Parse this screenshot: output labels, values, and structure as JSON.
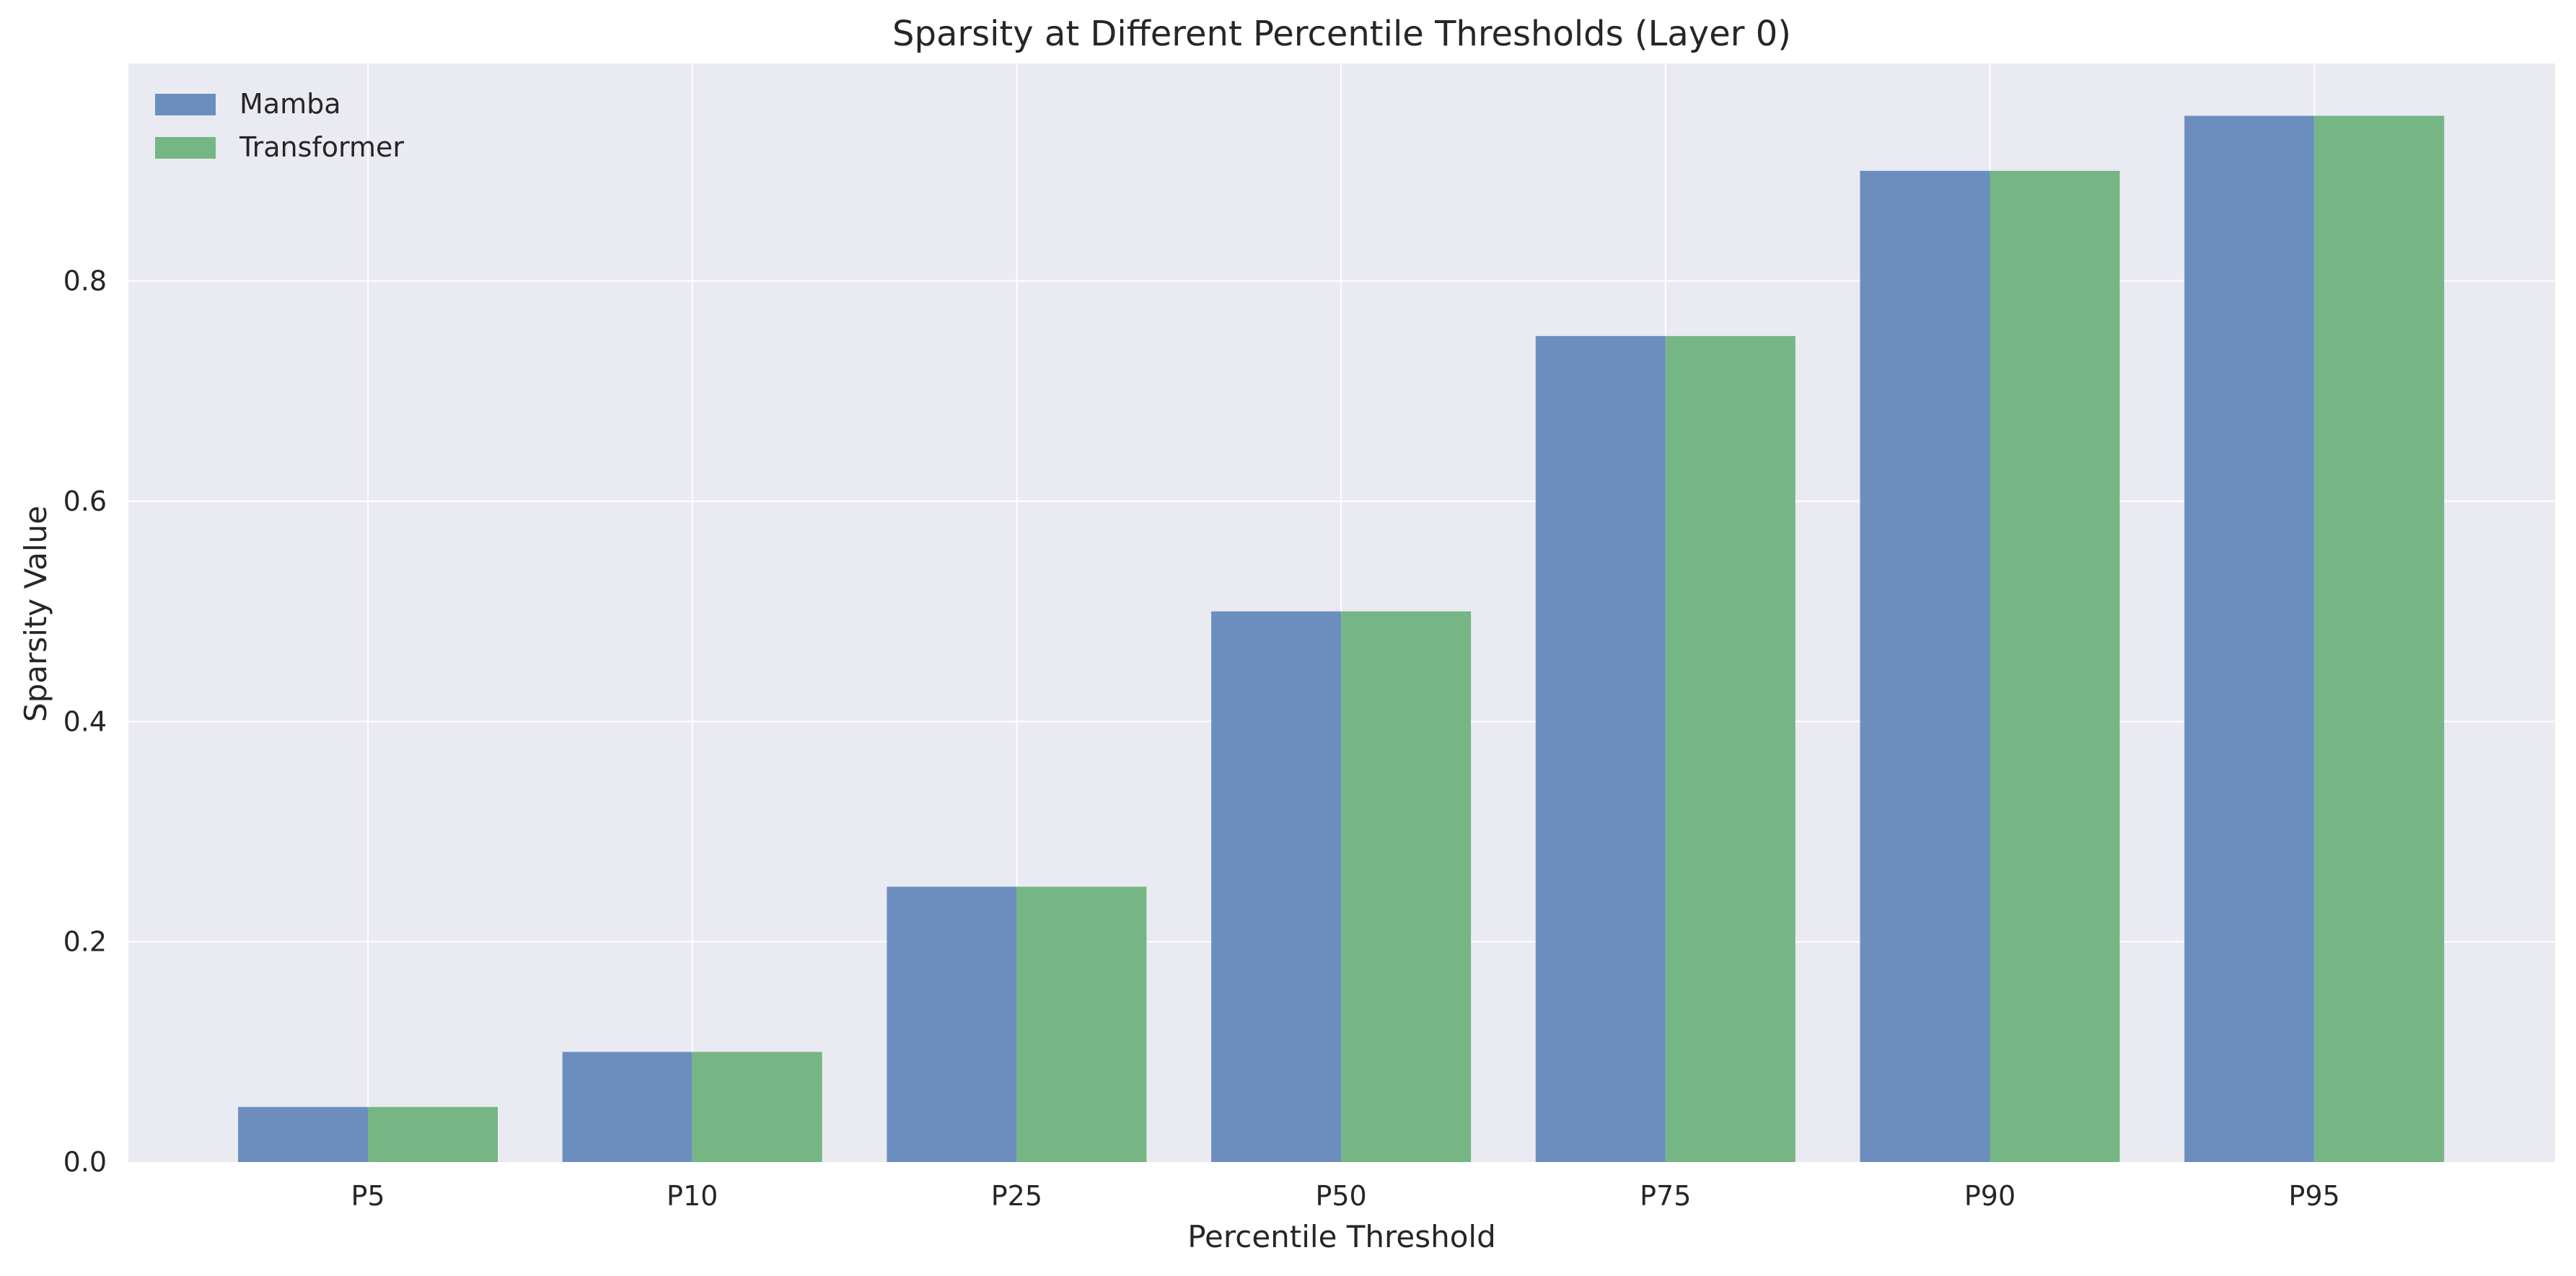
{
  "chart_data": {
    "type": "bar",
    "title": "Sparsity at Different Percentile Thresholds (Layer 0)",
    "xlabel": "Percentile Threshold",
    "ylabel": "Sparsity Value",
    "categories": [
      "P5",
      "P10",
      "P25",
      "P50",
      "P75",
      "P90",
      "P95"
    ],
    "series": [
      {
        "name": "Mamba",
        "values": [
          0.05,
          0.1,
          0.25,
          0.5,
          0.75,
          0.9,
          0.95
        ],
        "color": "#6c8ebf"
      },
      {
        "name": "Transformer",
        "values": [
          0.05,
          0.1,
          0.25,
          0.5,
          0.75,
          0.9,
          0.95
        ],
        "color": "#75b684"
      }
    ],
    "ylim": [
      0,
      0.9975
    ],
    "yticks": [
      0.0,
      0.2,
      0.4,
      0.6,
      0.8
    ],
    "ytick_labels": [
      "0.0",
      "0.2",
      "0.4",
      "0.6",
      "0.8"
    ],
    "grid": true,
    "legend_position": "top-left",
    "background_color": "#eaeaf2",
    "grid_color": "#ffffff"
  }
}
